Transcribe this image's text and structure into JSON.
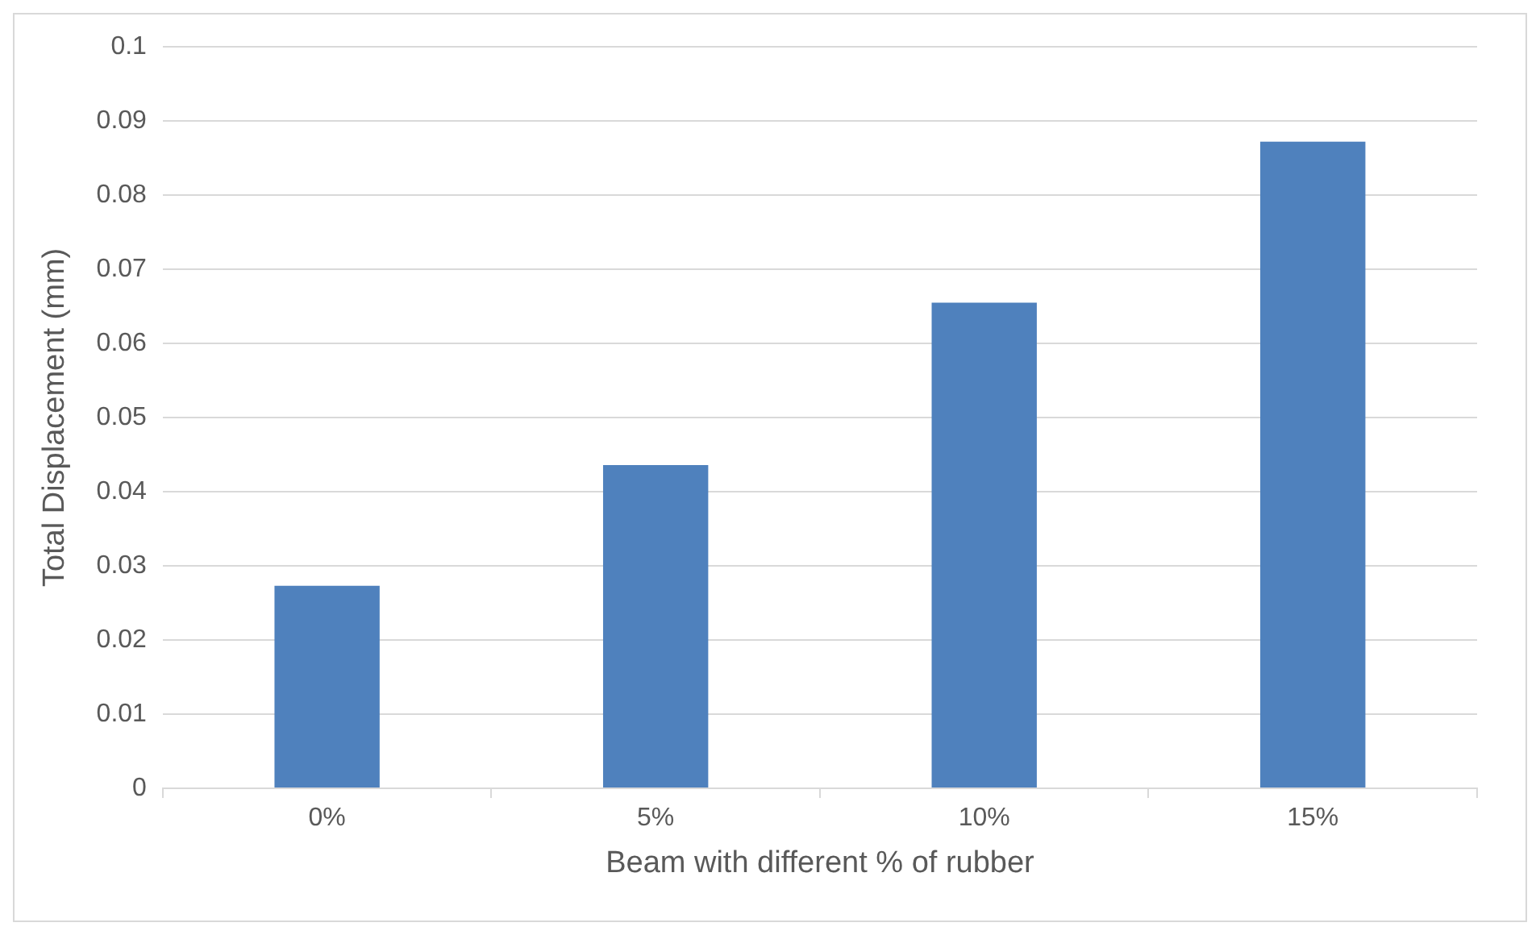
{
  "chart_data": {
    "type": "bar",
    "xlabel": "Beam with different % of rubber",
    "ylabel": "Total Displacement (mm)",
    "categories": [
      "0%",
      "5%",
      "10%",
      "15%"
    ],
    "values": [
      0.0273,
      0.0436,
      0.0655,
      0.0872
    ],
    "color": "#4f81bd",
    "ylim": [
      0,
      0.1
    ],
    "yticks": [
      0,
      0.01,
      0.02,
      0.03,
      0.04,
      0.05,
      0.06,
      0.07,
      0.08,
      0.09,
      0.1
    ],
    "grid": "y"
  }
}
